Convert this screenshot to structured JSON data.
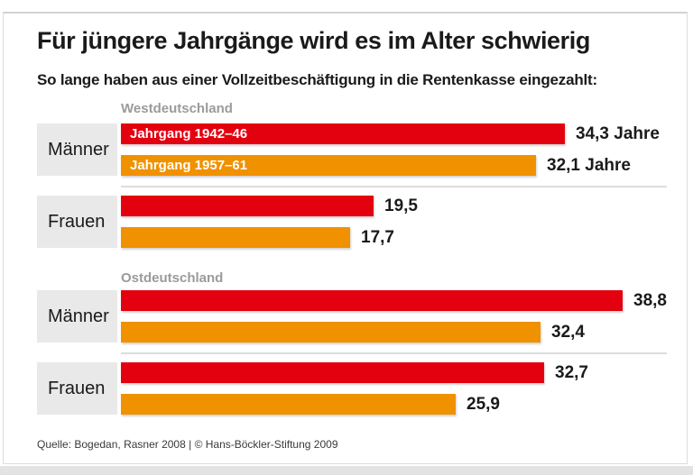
{
  "card": {
    "title": "Für jüngere Jahrgänge wird es im Alter schwierig",
    "subtitle": "So lange haben aus einer Vollzeitbeschäftigung in die Rentenkasse eingezahlt:",
    "source": "Quelle: Bogedan, Rasner 2008 | © Hans-Böckler-Stiftung 2009"
  },
  "colors": {
    "cohort_1942_46": "#e3000f",
    "cohort_1957_61": "#f09100",
    "label_box": "#e9e9e9",
    "section_heading": "#9b9b9b"
  },
  "chart_data": {
    "type": "bar",
    "orientation": "horizontal",
    "unit": "Jahre",
    "xlim": [
      0,
      40
    ],
    "series": [
      {
        "name": "Jahrgang 1942–46",
        "color": "#e3000f"
      },
      {
        "name": "Jahrgang 1957–61",
        "color": "#f09100"
      }
    ],
    "sections": [
      {
        "heading": "Westdeutschland",
        "groups": [
          {
            "label": "Männer",
            "bars": [
              {
                "series": "Jahrgang 1942–46",
                "value": 34.3,
                "value_label": "34,3 Jahre",
                "bar_label": "Jahrgang 1942–46"
              },
              {
                "series": "Jahrgang 1957–61",
                "value": 32.1,
                "value_label": "32,1 Jahre",
                "bar_label": "Jahrgang 1957–61"
              }
            ]
          },
          {
            "label": "Frauen",
            "bars": [
              {
                "series": "Jahrgang 1942–46",
                "value": 19.5,
                "value_label": "19,5",
                "bar_label": ""
              },
              {
                "series": "Jahrgang 1957–61",
                "value": 17.7,
                "value_label": "17,7",
                "bar_label": ""
              }
            ]
          }
        ]
      },
      {
        "heading": "Ostdeutschland",
        "groups": [
          {
            "label": "Männer",
            "bars": [
              {
                "series": "Jahrgang 1942–46",
                "value": 38.8,
                "value_label": "38,8",
                "bar_label": ""
              },
              {
                "series": "Jahrgang 1957–61",
                "value": 32.4,
                "value_label": "32,4",
                "bar_label": ""
              }
            ]
          },
          {
            "label": "Frauen",
            "bars": [
              {
                "series": "Jahrgang 1942–46",
                "value": 32.7,
                "value_label": "32,7",
                "bar_label": ""
              },
              {
                "series": "Jahrgang 1957–61",
                "value": 25.9,
                "value_label": "25,9",
                "bar_label": ""
              }
            ]
          }
        ]
      }
    ]
  }
}
